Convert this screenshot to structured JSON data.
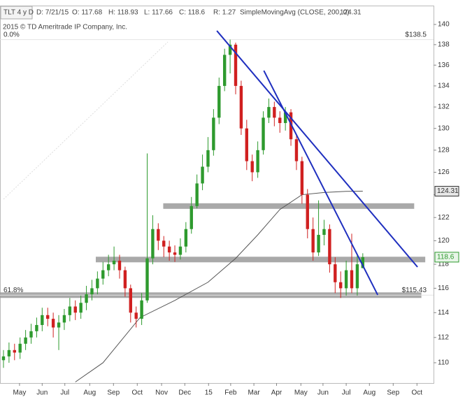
{
  "chart_data": {
    "type": "candlestick",
    "header": {
      "symbol": "TLT 4 y D",
      "date": "D: 7/21/15",
      "open": "O: 117.68",
      "high": "H: 118.93",
      "low": "L: 117.66",
      "close": "C: 118.6",
      "range": "R: 1.27",
      "study": "SimpleMovingAvg (CLOSE, 200, 0)"
    },
    "subtitle": "2015 © TD Ameritrade IP Company, Inc.",
    "log_scale": true,
    "xlim": [
      -0.63,
      77.8
    ],
    "ylim": [
      108.42,
      140.49
    ],
    "yticks": [
      110,
      112,
      114,
      116,
      118,
      120,
      122,
      124,
      126,
      128,
      130,
      132,
      134,
      136,
      138,
      140
    ],
    "xticks": [
      {
        "value": 2.9,
        "label": "May"
      },
      {
        "value": 7.0,
        "label": "Jun"
      },
      {
        "value": 11.1,
        "label": "Jul"
      },
      {
        "value": 15.6,
        "label": "Aug"
      },
      {
        "value": 19.9,
        "label": "Sep"
      },
      {
        "value": 24.2,
        "label": "Oct"
      },
      {
        "value": 28.6,
        "label": "Nov"
      },
      {
        "value": 32.8,
        "label": "Dec"
      },
      {
        "value": 37.1,
        "label": "15"
      },
      {
        "value": 41.1,
        "label": "Feb"
      },
      {
        "value": 45.3,
        "label": "Mar"
      },
      {
        "value": 49.4,
        "label": "Apr"
      },
      {
        "value": 53.8,
        "label": "May"
      },
      {
        "value": 57.8,
        "label": "Jun"
      },
      {
        "value": 62.0,
        "label": "Jul"
      },
      {
        "value": 66.2,
        "label": "Aug"
      },
      {
        "value": 70.5,
        "label": "Sep"
      },
      {
        "value": 74.8,
        "label": "Oct"
      }
    ],
    "up_color": "#2e9a2e",
    "down_color": "#d02020",
    "candles": {
      "open": [
        110.2,
        110.5,
        111,
        110.8,
        111.5,
        112,
        112.5,
        113,
        113.8,
        113.5,
        112.8,
        113.2,
        113.8,
        114.5,
        114,
        114.8,
        115.5,
        116,
        116.8,
        117.5,
        118,
        118.3,
        117.5,
        116,
        114,
        113.5,
        115,
        118.5,
        121,
        120,
        119.5,
        119,
        118.8,
        119.5,
        121,
        123,
        125,
        126.5,
        128,
        131,
        134,
        137,
        138,
        134,
        130,
        127,
        126,
        128,
        131,
        132,
        131,
        130.5,
        131.5,
        129,
        127,
        124,
        121,
        119,
        120.5,
        121,
        118,
        116.5,
        116,
        117.5,
        116,
        117.68
      ],
      "high": [
        111.0,
        111.6,
        111.5,
        112.0,
        112.6,
        113.1,
        113.6,
        114.4,
        114.4,
        114.0,
        113.8,
        114.3,
        115.2,
        115.0,
        115.4,
        116.2,
        116.7,
        117.4,
        118.2,
        118.8,
        119.5,
        118.8,
        117.8,
        116.3,
        114.5,
        115.6,
        127.7,
        122.2,
        121.5,
        120.4,
        120.0,
        119.6,
        120.2,
        121.6,
        123.8,
        125.8,
        127.6,
        129.2,
        131.8,
        134.8,
        137.6,
        138.5,
        138.2,
        134.5,
        130.8,
        127.6,
        128.8,
        131.6,
        132.8,
        132.5,
        131.6,
        132.0,
        131.8,
        129.5,
        127.4,
        124.5,
        122.0,
        123.5,
        121.8,
        121.4,
        118.6,
        117.4,
        118.3,
        120.6,
        118.8,
        118.93
      ],
      "low": [
        109.6,
        110.0,
        110.2,
        110.3,
        111.0,
        111.5,
        112.0,
        112.5,
        112.9,
        112.0,
        111.0,
        112.6,
        113.3,
        113.4,
        113.5,
        114.2,
        115.0,
        115.5,
        116.3,
        117.0,
        117.5,
        116.8,
        115.3,
        113.2,
        112.8,
        113.0,
        114.8,
        118.0,
        119.2,
        118.6,
        118.3,
        118.2,
        118.4,
        119.0,
        120.6,
        122.8,
        124.4,
        126.0,
        127.5,
        130.4,
        133.5,
        135.2,
        133.2,
        129.4,
        126.2,
        125.2,
        125.5,
        127.6,
        130.5,
        130.2,
        129.6,
        129.8,
        128.4,
        126.2,
        123.2,
        120.2,
        118.3,
        118.7,
        119.6,
        117.3,
        115.6,
        115.2,
        115.4,
        115.6,
        115.4,
        117.66
      ],
      "close": [
        110.5,
        111,
        110.8,
        111.5,
        112,
        112.5,
        113,
        113.8,
        113.5,
        112.8,
        113.2,
        113.8,
        114.5,
        114,
        114.8,
        115.5,
        116,
        116.8,
        117.5,
        118,
        118.3,
        117.5,
        116,
        114,
        113.5,
        115,
        118.5,
        121,
        120,
        119.5,
        119,
        118.8,
        119.5,
        121,
        123,
        125,
        126.5,
        128,
        131,
        134,
        137,
        138,
        134,
        130,
        127,
        126,
        128,
        131,
        132,
        131,
        130.5,
        131.5,
        129,
        127,
        124,
        121,
        119,
        120.5,
        121,
        118,
        116.5,
        116,
        117.5,
        116,
        118,
        118.6
      ]
    },
    "moving_average": {
      "color": "#555555",
      "x": [
        13,
        18,
        24.7,
        31,
        37,
        42,
        46,
        50,
        54,
        58,
        62,
        65
      ],
      "values": [
        108.5,
        110,
        113.6,
        115,
        116.5,
        118.5,
        120.5,
        122.7,
        124,
        124.2,
        124.3,
        124.31
      ]
    },
    "levels": [
      {
        "value": 123,
        "from": 28.9,
        "to": 74.3
      },
      {
        "value": 118.4,
        "from": 16.7,
        "to": 76.3
      },
      {
        "value": 115.43,
        "from": -0.63,
        "to": 75.6
      }
    ],
    "level_color": "#9a9a9a",
    "trendlines": [
      {
        "x": [
          38.6,
          74.9
        ],
        "values": [
          139.37,
          117.77
        ]
      },
      {
        "x": [
          47.1,
          67.7
        ],
        "values": [
          135.47,
          115.45
        ]
      }
    ],
    "trendline_color": "#1f2fbf",
    "fibonacci": [
      {
        "value": 138.5,
        "label": "0.0%",
        "price_label": "$138.5"
      },
      {
        "value": 115.43,
        "label": "61.8%",
        "price_label": "$115.43"
      }
    ]
  }
}
